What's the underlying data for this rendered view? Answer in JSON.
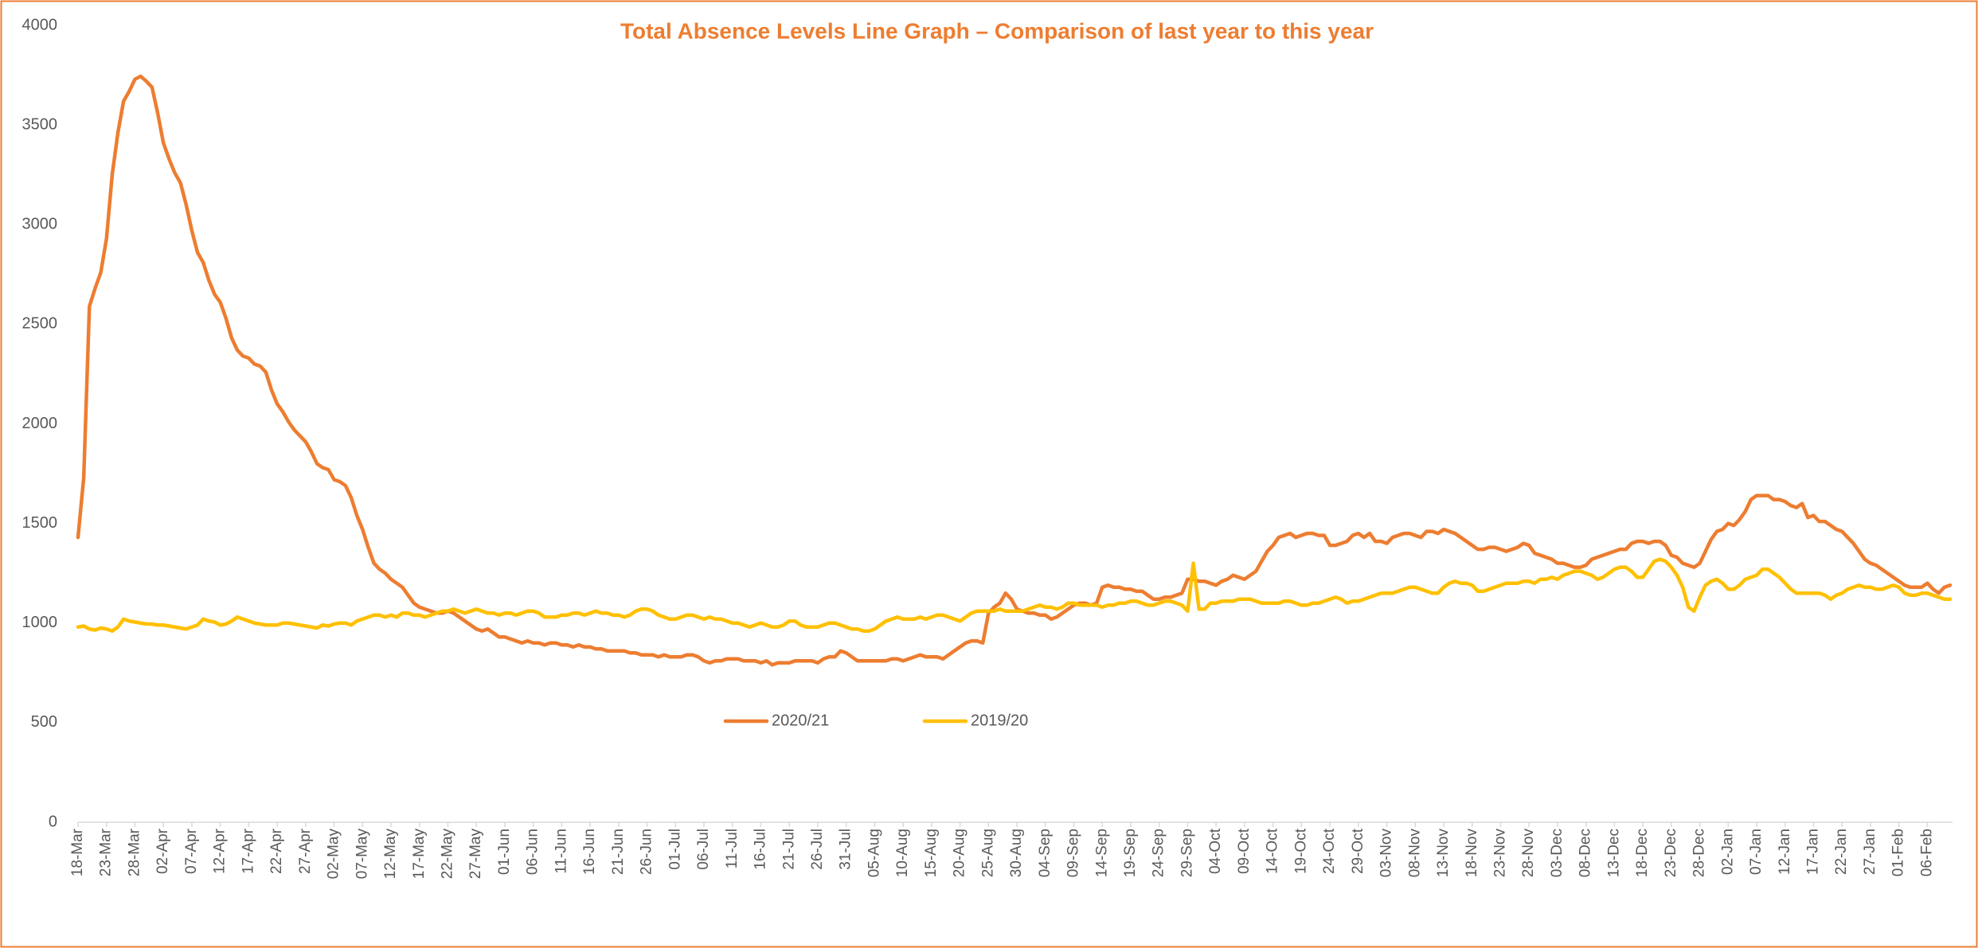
{
  "chart_data": {
    "type": "line",
    "title": "Total Absence Levels Line Graph – Comparison of last year to this year",
    "categories": [
      "18-Mar",
      null,
      null,
      null,
      null,
      "23-Mar",
      null,
      null,
      null,
      null,
      "28-Mar",
      null,
      null,
      null,
      null,
      "02-Apr",
      null,
      null,
      null,
      null,
      "07-Apr",
      null,
      null,
      null,
      null,
      "12-Apr",
      null,
      null,
      null,
      null,
      "17-Apr",
      null,
      null,
      null,
      null,
      "22-Apr",
      null,
      null,
      null,
      null,
      "27-Apr",
      null,
      null,
      null,
      null,
      "02-May",
      null,
      null,
      null,
      null,
      "07-May",
      null,
      null,
      null,
      null,
      "12-May",
      null,
      null,
      null,
      null,
      "17-May",
      null,
      null,
      null,
      null,
      "22-May",
      null,
      null,
      null,
      null,
      "27-May",
      null,
      null,
      null,
      null,
      "01-Jun",
      null,
      null,
      null,
      null,
      "06-Jun",
      null,
      null,
      null,
      null,
      "11-Jun",
      null,
      null,
      null,
      null,
      "16-Jun",
      null,
      null,
      null,
      null,
      "21-Jun",
      null,
      null,
      null,
      null,
      "26-Jun",
      null,
      null,
      null,
      null,
      "01-Jul",
      null,
      null,
      null,
      null,
      "06-Jul",
      null,
      null,
      null,
      null,
      "11-Jul",
      null,
      null,
      null,
      null,
      "16-Jul",
      null,
      null,
      null,
      null,
      "21-Jul",
      null,
      null,
      null,
      null,
      "26-Jul",
      null,
      null,
      null,
      null,
      "31-Jul",
      null,
      null,
      null,
      null,
      "05-Aug",
      null,
      null,
      null,
      null,
      "10-Aug",
      null,
      null,
      null,
      null,
      "15-Aug",
      null,
      null,
      null,
      null,
      "20-Aug",
      null,
      null,
      null,
      null,
      "25-Aug",
      null,
      null,
      null,
      null,
      "30-Aug",
      null,
      null,
      null,
      null,
      "04-Sep",
      null,
      null,
      null,
      null,
      "09-Sep",
      null,
      null,
      null,
      null,
      "14-Sep",
      null,
      null,
      null,
      null,
      "19-Sep",
      null,
      null,
      null,
      null,
      "24-Sep",
      null,
      null,
      null,
      null,
      "29-Sep",
      null,
      null,
      null,
      null,
      "04-Oct",
      null,
      null,
      null,
      null,
      "09-Oct",
      null,
      null,
      null,
      null,
      "14-Oct",
      null,
      null,
      null,
      null,
      "19-Oct",
      null,
      null,
      null,
      null,
      "24-Oct",
      null,
      null,
      null,
      null,
      "29-Oct",
      null,
      null,
      null,
      null,
      "03-Nov",
      null,
      null,
      null,
      null,
      "08-Nov",
      null,
      null,
      null,
      null,
      "13-Nov",
      null,
      null,
      null,
      null,
      "18-Nov",
      null,
      null,
      null,
      null,
      "23-Nov",
      null,
      null,
      null,
      null,
      "28-Nov",
      null,
      null,
      null,
      null,
      "03-Dec",
      null,
      null,
      null,
      null,
      "08-Dec",
      null,
      null,
      null,
      null,
      "13-Dec",
      null,
      null,
      null,
      null,
      "18-Dec",
      null,
      null,
      null,
      null,
      "23-Dec",
      null,
      null,
      null,
      null,
      "28-Dec",
      null,
      null,
      null,
      null,
      "02-Jan",
      null,
      null,
      null,
      null,
      "07-Jan",
      null,
      null,
      null,
      null,
      "12-Jan",
      null,
      null,
      null,
      null,
      "17-Jan",
      null,
      null,
      null,
      null,
      "22-Jan",
      null,
      null,
      null,
      null,
      "27-Jan",
      null,
      null,
      null,
      null,
      "01-Feb",
      null,
      null,
      null,
      null,
      "06-Feb",
      null,
      null,
      null,
      null
    ],
    "series": [
      {
        "name": "2020/21",
        "color": "#ED7D31",
        "values": [
          1430,
          1730,
          2590,
          2680,
          2760,
          2930,
          3250,
          3460,
          3620,
          3670,
          3730,
          3745,
          3720,
          3690,
          3560,
          3410,
          3330,
          3260,
          3210,
          3100,
          2970,
          2860,
          2810,
          2720,
          2650,
          2610,
          2530,
          2430,
          2370,
          2340,
          2330,
          2300,
          2290,
          2260,
          2170,
          2100,
          2060,
          2010,
          1970,
          1940,
          1910,
          1860,
          1800,
          1780,
          1770,
          1720,
          1710,
          1690,
          1630,
          1540,
          1470,
          1380,
          1300,
          1270,
          1250,
          1220,
          1200,
          1180,
          1140,
          1100,
          1080,
          1070,
          1060,
          1050,
          1050,
          1060,
          1050,
          1030,
          1010,
          990,
          970,
          960,
          970,
          950,
          930,
          930,
          920,
          910,
          900,
          910,
          900,
          900,
          890,
          900,
          900,
          890,
          890,
          880,
          890,
          880,
          880,
          870,
          870,
          860,
          860,
          860,
          860,
          850,
          850,
          840,
          840,
          840,
          830,
          840,
          830,
          830,
          830,
          840,
          840,
          830,
          810,
          800,
          810,
          810,
          820,
          820,
          820,
          810,
          810,
          810,
          800,
          810,
          790,
          800,
          800,
          800,
          810,
          810,
          810,
          810,
          800,
          820,
          830,
          830,
          860,
          850,
          830,
          810,
          810,
          810,
          810,
          810,
          810,
          820,
          820,
          810,
          820,
          830,
          840,
          830,
          830,
          830,
          820,
          840,
          860,
          880,
          900,
          910,
          910,
          900,
          1050,
          1080,
          1100,
          1150,
          1120,
          1070,
          1060,
          1050,
          1050,
          1040,
          1040,
          1020,
          1030,
          1050,
          1070,
          1090,
          1100,
          1100,
          1090,
          1100,
          1180,
          1190,
          1180,
          1180,
          1170,
          1170,
          1160,
          1160,
          1140,
          1120,
          1120,
          1130,
          1130,
          1140,
          1150,
          1220,
          1220,
          1210,
          1210,
          1200,
          1190,
          1210,
          1220,
          1240,
          1230,
          1220,
          1240,
          1260,
          1310,
          1360,
          1390,
          1430,
          1440,
          1450,
          1430,
          1440,
          1450,
          1450,
          1440,
          1440,
          1390,
          1390,
          1400,
          1410,
          1440,
          1450,
          1430,
          1450,
          1410,
          1410,
          1400,
          1430,
          1440,
          1450,
          1450,
          1440,
          1430,
          1460,
          1460,
          1450,
          1470,
          1460,
          1450,
          1430,
          1410,
          1390,
          1370,
          1370,
          1380,
          1380,
          1370,
          1360,
          1370,
          1380,
          1400,
          1390,
          1350,
          1340,
          1330,
          1320,
          1300,
          1300,
          1290,
          1280,
          1280,
          1290,
          1320,
          1330,
          1340,
          1350,
          1360,
          1370,
          1370,
          1400,
          1410,
          1410,
          1400,
          1410,
          1410,
          1390,
          1340,
          1330,
          1300,
          1290,
          1280,
          1300,
          1360,
          1420,
          1460,
          1470,
          1500,
          1490,
          1520,
          1560,
          1620,
          1640,
          1640,
          1640,
          1620,
          1620,
          1610,
          1590,
          1580,
          1600,
          1530,
          1540,
          1510,
          1510,
          1490,
          1470,
          1460,
          1430,
          1400,
          1360,
          1320,
          1300,
          1290,
          1270,
          1250,
          1230,
          1210,
          1190,
          1180,
          1180,
          1180,
          1200,
          1170,
          1150,
          1180,
          1190
        ]
      },
      {
        "name": "2019/20",
        "color": "#FFC000",
        "values": [
          980,
          985,
          970,
          965,
          975,
          970,
          960,
          980,
          1020,
          1010,
          1005,
          1000,
          995,
          995,
          990,
          990,
          985,
          980,
          975,
          970,
          980,
          990,
          1020,
          1010,
          1005,
          990,
          995,
          1010,
          1030,
          1020,
          1010,
          1000,
          995,
          990,
          990,
          990,
          1000,
          1000,
          995,
          990,
          985,
          980,
          975,
          990,
          985,
          995,
          1000,
          1000,
          990,
          1010,
          1020,
          1030,
          1040,
          1040,
          1030,
          1040,
          1030,
          1050,
          1050,
          1040,
          1040,
          1030,
          1040,
          1050,
          1060,
          1060,
          1070,
          1060,
          1050,
          1060,
          1070,
          1060,
          1050,
          1050,
          1040,
          1050,
          1050,
          1040,
          1050,
          1060,
          1060,
          1050,
          1030,
          1030,
          1030,
          1040,
          1040,
          1050,
          1050,
          1040,
          1050,
          1060,
          1050,
          1050,
          1040,
          1040,
          1030,
          1040,
          1060,
          1070,
          1070,
          1060,
          1040,
          1030,
          1020,
          1020,
          1030,
          1040,
          1040,
          1030,
          1020,
          1030,
          1020,
          1020,
          1010,
          1000,
          1000,
          990,
          980,
          990,
          1000,
          990,
          980,
          980,
          990,
          1010,
          1010,
          990,
          980,
          980,
          980,
          990,
          1000,
          1000,
          990,
          980,
          970,
          970,
          960,
          960,
          970,
          990,
          1010,
          1020,
          1030,
          1020,
          1020,
          1020,
          1030,
          1020,
          1030,
          1040,
          1040,
          1030,
          1020,
          1010,
          1030,
          1050,
          1060,
          1060,
          1060,
          1060,
          1070,
          1060,
          1060,
          1060,
          1060,
          1070,
          1080,
          1090,
          1080,
          1080,
          1070,
          1080,
          1100,
          1100,
          1090,
          1090,
          1090,
          1090,
          1080,
          1090,
          1090,
          1100,
          1100,
          1110,
          1110,
          1100,
          1090,
          1090,
          1100,
          1110,
          1110,
          1100,
          1090,
          1060,
          1300,
          1070,
          1070,
          1100,
          1100,
          1110,
          1110,
          1110,
          1120,
          1120,
          1120,
          1110,
          1100,
          1100,
          1100,
          1100,
          1110,
          1110,
          1100,
          1090,
          1090,
          1100,
          1100,
          1110,
          1120,
          1130,
          1120,
          1100,
          1110,
          1110,
          1120,
          1130,
          1140,
          1150,
          1150,
          1150,
          1160,
          1170,
          1180,
          1180,
          1170,
          1160,
          1150,
          1150,
          1180,
          1200,
          1210,
          1200,
          1200,
          1190,
          1160,
          1160,
          1170,
          1180,
          1190,
          1200,
          1200,
          1200,
          1210,
          1210,
          1200,
          1220,
          1220,
          1230,
          1220,
          1240,
          1250,
          1260,
          1260,
          1250,
          1240,
          1220,
          1230,
          1250,
          1270,
          1280,
          1280,
          1260,
          1230,
          1230,
          1270,
          1310,
          1320,
          1310,
          1280,
          1240,
          1180,
          1080,
          1060,
          1130,
          1190,
          1210,
          1220,
          1200,
          1170,
          1170,
          1190,
          1220,
          1230,
          1240,
          1270,
          1270,
          1250,
          1230,
          1200,
          1170,
          1150,
          1150,
          1150,
          1150,
          1150,
          1140,
          1120,
          1140,
          1150,
          1170,
          1180,
          1190,
          1180,
          1180,
          1170,
          1170,
          1180,
          1190,
          1180,
          1150,
          1140,
          1140,
          1150,
          1150,
          1140,
          1130,
          1120,
          1120
        ]
      }
    ],
    "ylim": [
      0,
      4000
    ],
    "yticks": [
      0,
      500,
      1000,
      1500,
      2000,
      2500,
      3000,
      3500,
      4000
    ],
    "grid": false,
    "legend": "center"
  }
}
